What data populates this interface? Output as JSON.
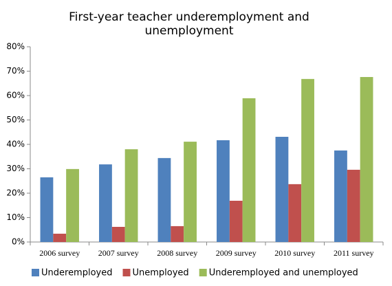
{
  "chart_data": {
    "type": "bar",
    "title": "First-year teacher underemployment and unemployment",
    "categories": [
      "2006 survey",
      "2007 survey",
      "2008 survey",
      "2009 survey",
      "2010 survey",
      "2011 survey"
    ],
    "series": [
      {
        "name": "Underemployed",
        "color": "#4f81bd",
        "values": [
          26.5,
          31.8,
          34.4,
          41.7,
          43.1,
          37.5
        ]
      },
      {
        "name": "Unemployed",
        "color": "#c0504d",
        "values": [
          3.4,
          6.2,
          6.5,
          16.9,
          23.7,
          29.6
        ]
      },
      {
        "name": "Underemployed and unemployed",
        "color": "#9bbb59",
        "values": [
          29.9,
          38.0,
          41.1,
          58.9,
          66.8,
          67.6
        ]
      }
    ],
    "ylim": [
      0,
      80
    ],
    "yticks": [
      {
        "value": 0,
        "label": "0%"
      },
      {
        "value": 10,
        "label": "10%"
      },
      {
        "value": 20,
        "label": "20%"
      },
      {
        "value": 30,
        "label": "30%"
      },
      {
        "value": 40,
        "label": "40%"
      },
      {
        "value": 50,
        "label": "50%"
      },
      {
        "value": 60,
        "label": "60%"
      },
      {
        "value": 70,
        "label": "70%"
      },
      {
        "value": 80,
        "label": "80%"
      }
    ],
    "grid": false,
    "legend": "bottom"
  }
}
